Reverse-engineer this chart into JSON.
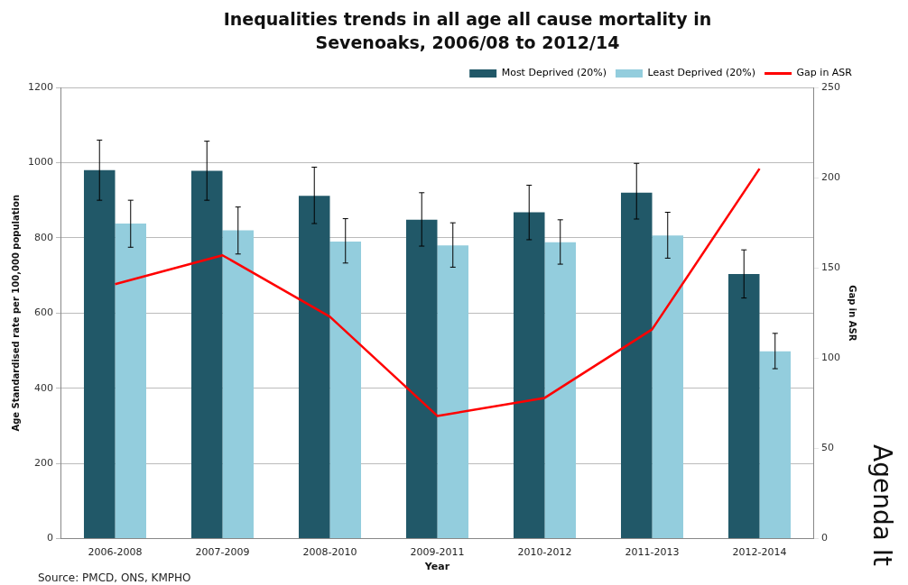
{
  "chart_data": {
    "type": "bar",
    "title": "Inequalities trends in all age all cause mortality in Sevenoaks, 2006/08 to 2012/14",
    "xlabel": "Year",
    "ylabel": "Age Standardised rate per 100,000 population",
    "y2label": "Gap in ASR",
    "categories": [
      "2006-2008",
      "2007-2009",
      "2008-2010",
      "2009-2011",
      "2010-2012",
      "2011-2013",
      "2012-2014"
    ],
    "series": [
      {
        "name": "Most Deprived (20%)",
        "color": "#215868",
        "values": [
          980,
          978,
          912,
          848,
          868,
          920,
          704
        ],
        "errors": [
          [
            900,
            1060
          ],
          [
            900,
            1057
          ],
          [
            838,
            988
          ],
          [
            778,
            920
          ],
          [
            795,
            940
          ],
          [
            850,
            998
          ],
          [
            640,
            768
          ]
        ]
      },
      {
        "name": "Least Deprived (20%)",
        "color": "#93cddd",
        "values": [
          838,
          820,
          790,
          780,
          788,
          806,
          498
        ],
        "errors": [
          [
            775,
            900
          ],
          [
            757,
            882
          ],
          [
            733,
            851
          ],
          [
            722,
            840
          ],
          [
            730,
            848
          ],
          [
            746,
            868
          ],
          [
            452,
            546
          ]
        ]
      },
      {
        "name": "Gap in ASR",
        "type": "line",
        "axis": "y2",
        "color": "#ff0000",
        "values": [
          141,
          157,
          123,
          68,
          78,
          116,
          205
        ]
      }
    ],
    "ylim": [
      0,
      1200
    ],
    "yticks": [
      0,
      200,
      400,
      600,
      800,
      1000,
      1200
    ],
    "y2lim": [
      0,
      250
    ],
    "y2ticks": [
      0,
      50,
      100,
      150,
      200,
      250
    ],
    "grid": "y",
    "legend": "top right",
    "marker": "none",
    "annotations": [
      "Source: PMCD, ONS, KMPHO",
      "Agenda It"
    ]
  }
}
